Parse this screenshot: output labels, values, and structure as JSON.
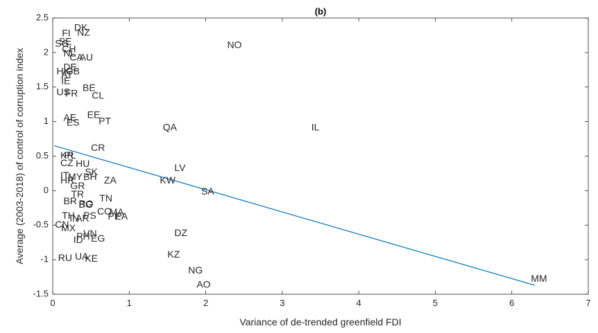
{
  "chart_data": {
    "type": "scatter",
    "title": "(b)",
    "xlabel": "Variance of de-trended greenfield FDI",
    "ylabel": "Average (2003-2018) of control of corruption index",
    "xlim": [
      0,
      7
    ],
    "ylim": [
      -1.5,
      2.5
    ],
    "x_ticks": [
      "0",
      "1",
      "2",
      "3",
      "4",
      "5",
      "6",
      "7"
    ],
    "y_ticks": [
      "-1.5",
      "-1",
      "-0.5",
      "0",
      "0.5",
      "1",
      "1.5",
      "2",
      "2.5"
    ],
    "grid": false,
    "box": true,
    "colors": {
      "axis": "#262626",
      "fit_line": "#0072BD",
      "text": "#262626"
    },
    "points": [
      {
        "label": "DK",
        "x": 0.28,
        "y": 2.35
      },
      {
        "label": "FI",
        "x": 0.12,
        "y": 2.27
      },
      {
        "label": "NZ",
        "x": 0.32,
        "y": 2.28
      },
      {
        "label": "SE",
        "x": 0.08,
        "y": 2.15
      },
      {
        "label": "SG",
        "x": 0.03,
        "y": 2.12
      },
      {
        "label": "NO",
        "x": 2.28,
        "y": 2.1
      },
      {
        "label": "CH",
        "x": 0.12,
        "y": 2.04
      },
      {
        "label": "NL",
        "x": 0.14,
        "y": 1.98
      },
      {
        "label": "CA",
        "x": 0.22,
        "y": 1.92
      },
      {
        "label": "AU",
        "x": 0.35,
        "y": 1.92
      },
      {
        "label": "DE",
        "x": 0.14,
        "y": 1.78
      },
      {
        "label": "HK",
        "x": 0.05,
        "y": 1.72
      },
      {
        "label": "GB",
        "x": 0.17,
        "y": 1.72
      },
      {
        "label": "AT",
        "x": 0.11,
        "y": 1.67
      },
      {
        "label": "IE",
        "x": 0.11,
        "y": 1.58
      },
      {
        "label": "BE",
        "x": 0.39,
        "y": 1.48
      },
      {
        "label": "US",
        "x": 0.05,
        "y": 1.42
      },
      {
        "label": "FR",
        "x": 0.16,
        "y": 1.4
      },
      {
        "label": "CL",
        "x": 0.51,
        "y": 1.37
      },
      {
        "label": "EE",
        "x": 0.45,
        "y": 1.09
      },
      {
        "label": "AE",
        "x": 0.14,
        "y": 1.05
      },
      {
        "label": "PT",
        "x": 0.6,
        "y": 1.0
      },
      {
        "label": "ES",
        "x": 0.18,
        "y": 0.98
      },
      {
        "label": "QA",
        "x": 1.44,
        "y": 0.91
      },
      {
        "label": "IL",
        "x": 3.38,
        "y": 0.91
      },
      {
        "label": "CR",
        "x": 0.5,
        "y": 0.61
      },
      {
        "label": "KR",
        "x": 0.1,
        "y": 0.5
      },
      {
        "label": "PL",
        "x": 0.15,
        "y": 0.5
      },
      {
        "label": "CZ",
        "x": 0.1,
        "y": 0.39
      },
      {
        "label": "HU",
        "x": 0.3,
        "y": 0.38
      },
      {
        "label": "LV",
        "x": 1.59,
        "y": 0.32
      },
      {
        "label": "SK",
        "x": 0.42,
        "y": 0.26
      },
      {
        "label": "IT",
        "x": 0.1,
        "y": 0.21
      },
      {
        "label": "MY",
        "x": 0.2,
        "y": 0.19
      },
      {
        "label": "BH",
        "x": 0.4,
        "y": 0.19
      },
      {
        "label": "ZA",
        "x": 0.67,
        "y": 0.14
      },
      {
        "label": "KW",
        "x": 1.4,
        "y": 0.14
      },
      {
        "label": "HR",
        "x": 0.1,
        "y": 0.14
      },
      {
        "label": "GR",
        "x": 0.23,
        "y": 0.06
      },
      {
        "label": "SA",
        "x": 1.94,
        "y": -0.02
      },
      {
        "label": "TR",
        "x": 0.24,
        "y": -0.06
      },
      {
        "label": "TN",
        "x": 0.61,
        "y": -0.12
      },
      {
        "label": "BR",
        "x": 0.14,
        "y": -0.16
      },
      {
        "label": "BG",
        "x": 0.34,
        "y": -0.21
      },
      {
        "label": "RO",
        "x": 0.34,
        "y": -0.2
      },
      {
        "label": "CO",
        "x": 0.58,
        "y": -0.31
      },
      {
        "label": "MA",
        "x": 0.74,
        "y": -0.32
      },
      {
        "label": "PE",
        "x": 0.72,
        "y": -0.38
      },
      {
        "label": "PA",
        "x": 0.82,
        "y": -0.38
      },
      {
        "label": "TH",
        "x": 0.12,
        "y": -0.37
      },
      {
        "label": "IN",
        "x": 0.22,
        "y": -0.41
      },
      {
        "label": "AR",
        "x": 0.3,
        "y": -0.41
      },
      {
        "label": "PS",
        "x": 0.4,
        "y": -0.37
      },
      {
        "label": "CN",
        "x": 0.03,
        "y": -0.5
      },
      {
        "label": "MX",
        "x": 0.11,
        "y": -0.55
      },
      {
        "label": "DZ",
        "x": 1.59,
        "y": -0.62
      },
      {
        "label": "VN",
        "x": 0.4,
        "y": -0.63
      },
      {
        "label": "PH",
        "x": 0.31,
        "y": -0.67
      },
      {
        "label": "EG",
        "x": 0.5,
        "y": -0.7
      },
      {
        "label": "ID",
        "x": 0.27,
        "y": -0.72
      },
      {
        "label": "RU",
        "x": 0.07,
        "y": -0.98
      },
      {
        "label": "UA",
        "x": 0.29,
        "y": -0.96
      },
      {
        "label": "KE",
        "x": 0.42,
        "y": -0.99
      },
      {
        "label": "KZ",
        "x": 1.5,
        "y": -0.93
      },
      {
        "label": "NG",
        "x": 1.77,
        "y": -1.16
      },
      {
        "label": "AO",
        "x": 1.88,
        "y": -1.37
      },
      {
        "label": "MM",
        "x": 6.25,
        "y": -1.28
      }
    ],
    "fit_line": {
      "x": [
        0.02,
        6.3
      ],
      "y": [
        0.65,
        -1.37
      ]
    }
  }
}
